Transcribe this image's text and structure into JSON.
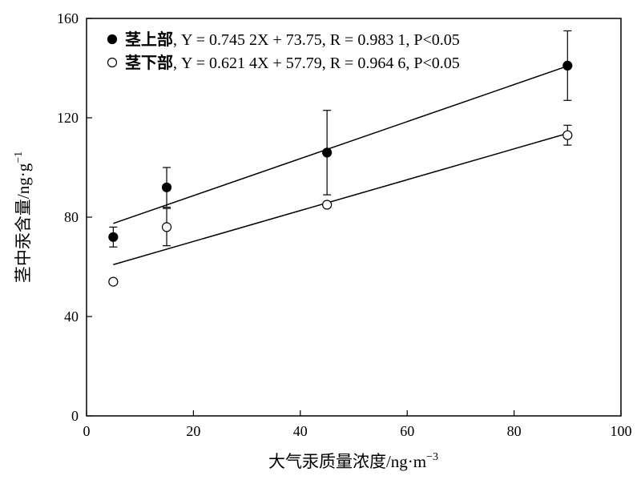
{
  "chart_data": {
    "type": "scatter",
    "xlabel": "大气汞质量浓度/ng·m",
    "xlabel_sup": "−3",
    "ylabel": "茎中汞含量/ng·g",
    "ylabel_sup": "−1",
    "xlim": [
      0,
      100
    ],
    "ylim": [
      0,
      160
    ],
    "xticks": [
      0,
      20,
      40,
      60,
      80,
      100
    ],
    "yticks": [
      0,
      40,
      80,
      120,
      160
    ],
    "grid": false,
    "legend_position": "top-left",
    "series": [
      {
        "name": "茎上部",
        "marker": "filled-circle",
        "color": "#000000",
        "x": [
          5,
          15,
          45,
          90
        ],
        "y": [
          72,
          92,
          106,
          141
        ],
        "error": [
          4,
          8,
          17,
          14
        ],
        "fit_label": ", Y = 0.745 2X + 73.75, R = 0.983 1, P<0.05",
        "fit": {
          "slope": 0.7452,
          "intercept": 73.75,
          "x_range": [
            5,
            90
          ]
        }
      },
      {
        "name": "茎下部",
        "marker": "open-circle",
        "color": "#000000",
        "x": [
          5,
          15,
          45,
          90
        ],
        "y": [
          54,
          76,
          85,
          113
        ],
        "error": [
          1,
          7.5,
          1,
          4
        ],
        "fit_label": ", Y = 0.621 4X + 57.79, R = 0.964 6, P<0.05",
        "fit": {
          "slope": 0.6214,
          "intercept": 57.79,
          "x_range": [
            5,
            90
          ]
        }
      }
    ]
  }
}
